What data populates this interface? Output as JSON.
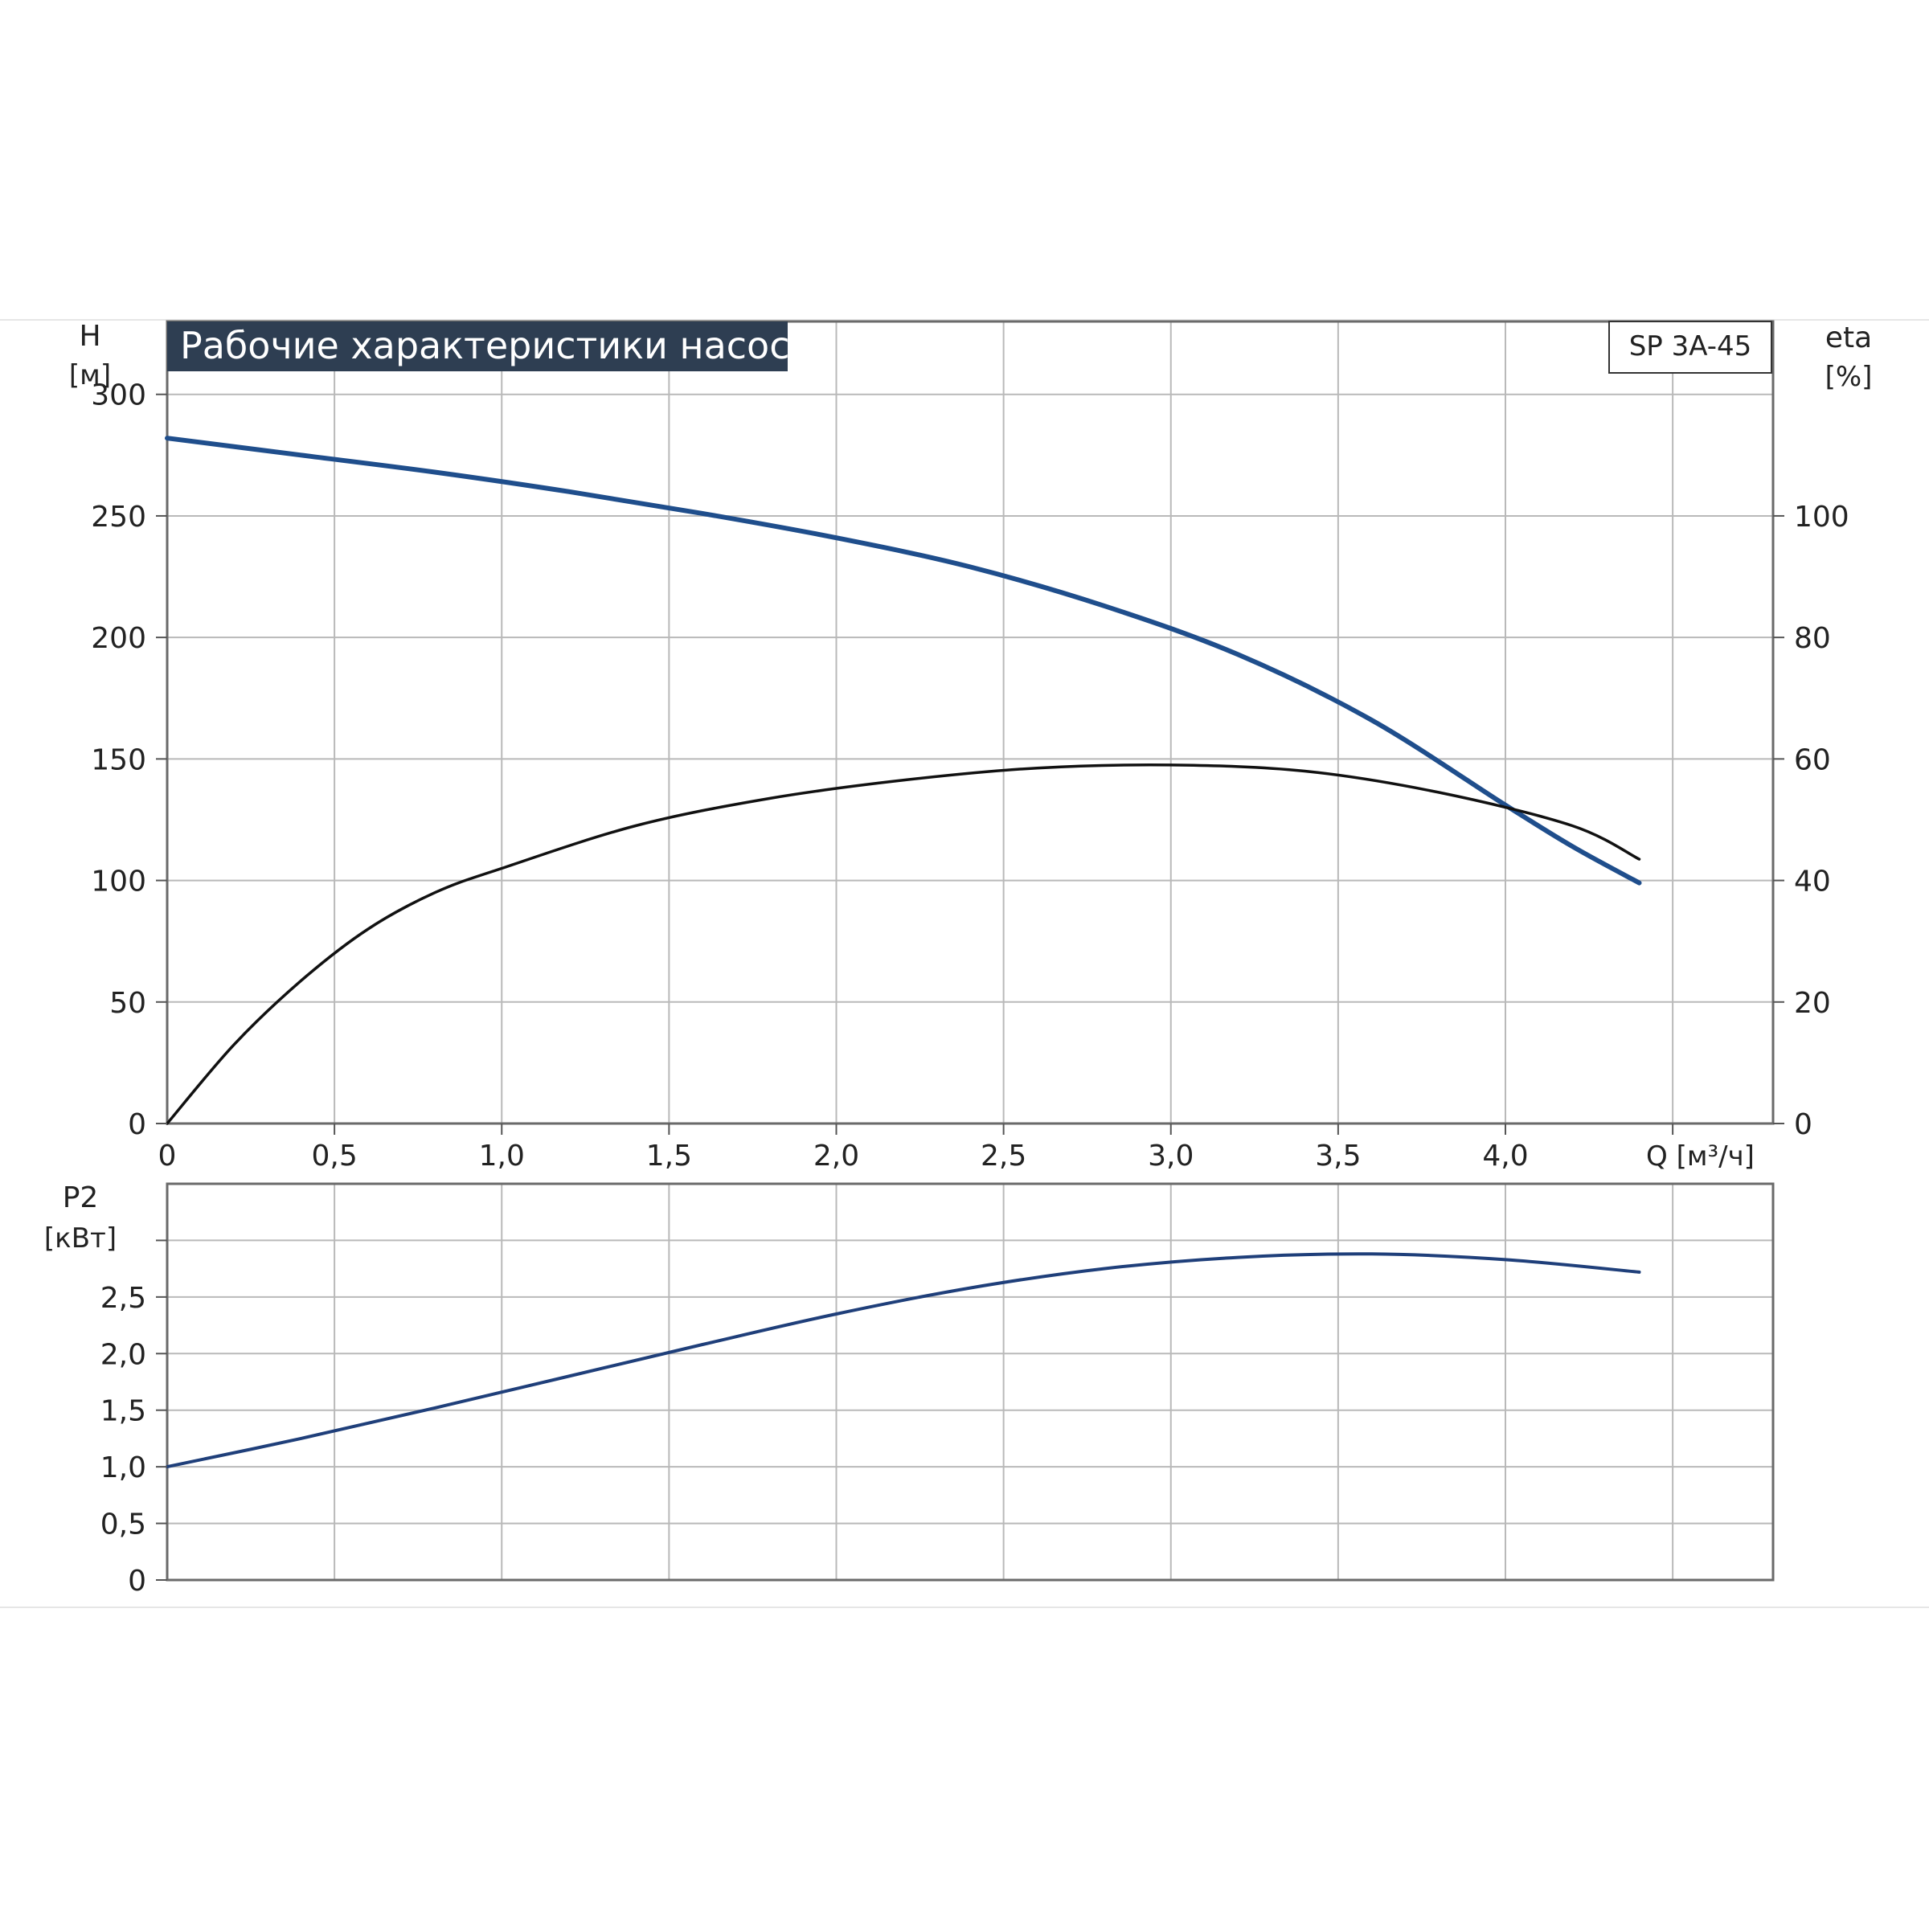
{
  "colors": {
    "head_curve": "#1f4e8c",
    "efficiency_curve": "#111111",
    "power_curve": "#1f3f7a",
    "grid": "#b9b9b9",
    "axis": "#555555",
    "title_bg": "#2e3e52",
    "title_fg": "#ffffff"
  },
  "chart_data": [
    {
      "type": "line",
      "title": "Рабочие характеристики насоса",
      "model_label": "SP 3A-45",
      "xlabel": "Q [м³/ч]",
      "ylabel_top": "H",
      "ylabel_unit": "[м]",
      "y2label_top": "eta",
      "y2label_unit": "[%]",
      "xlim": [
        0,
        4.8
      ],
      "ylim": [
        0,
        330
      ],
      "y2lim": [
        0,
        132
      ],
      "x_ticks": [
        "0",
        "0,5",
        "1,0",
        "1,5",
        "2,0",
        "2,5",
        "3,0",
        "3,5",
        "4,0"
      ],
      "y_ticks": [
        "0",
        "50",
        "100",
        "150",
        "200",
        "250",
        "300"
      ],
      "y2_ticks": [
        "0",
        "20",
        "40",
        "60",
        "80",
        "100"
      ],
      "grid": true,
      "series": [
        {
          "axis": "left",
          "color_key": "head_curve",
          "x": [
            0,
            0.4,
            0.8,
            1.2,
            1.6,
            2.0,
            2.4,
            2.8,
            3.2,
            3.6,
            4.0,
            4.2,
            4.4
          ],
          "y": [
            282,
            275,
            268,
            260,
            251,
            241,
            229,
            213,
            193,
            166,
            131,
            114,
            99
          ]
        },
        {
          "axis": "right",
          "color_key": "efficiency_curve",
          "x": [
            0,
            0.2,
            0.4,
            0.6,
            0.8,
            1.0,
            1.4,
            1.8,
            2.2,
            2.6,
            3.0,
            3.4,
            3.8,
            4.2,
            4.4
          ],
          "y": [
            0,
            13,
            23.5,
            32,
            38,
            42,
            49,
            53.5,
            56.5,
            58.5,
            59,
            58,
            54.5,
            49,
            43.5
          ]
        }
      ]
    },
    {
      "type": "line",
      "ylabel_top": "P2",
      "ylabel_unit": "[кВт]",
      "xlim": [
        0,
        4.8
      ],
      "ylim": [
        0,
        3.5
      ],
      "y_ticks": [
        "0",
        "0,5",
        "1,0",
        "1,5",
        "2,0",
        "2,5"
      ],
      "grid": true,
      "series": [
        {
          "axis": "left",
          "color_key": "power_curve",
          "x": [
            0,
            0.4,
            0.8,
            1.2,
            1.6,
            2.0,
            2.4,
            2.8,
            3.2,
            3.6,
            4.0,
            4.4
          ],
          "y": [
            1.0,
            1.25,
            1.52,
            1.8,
            2.08,
            2.35,
            2.58,
            2.75,
            2.85,
            2.88,
            2.83,
            2.72
          ]
        }
      ]
    }
  ]
}
